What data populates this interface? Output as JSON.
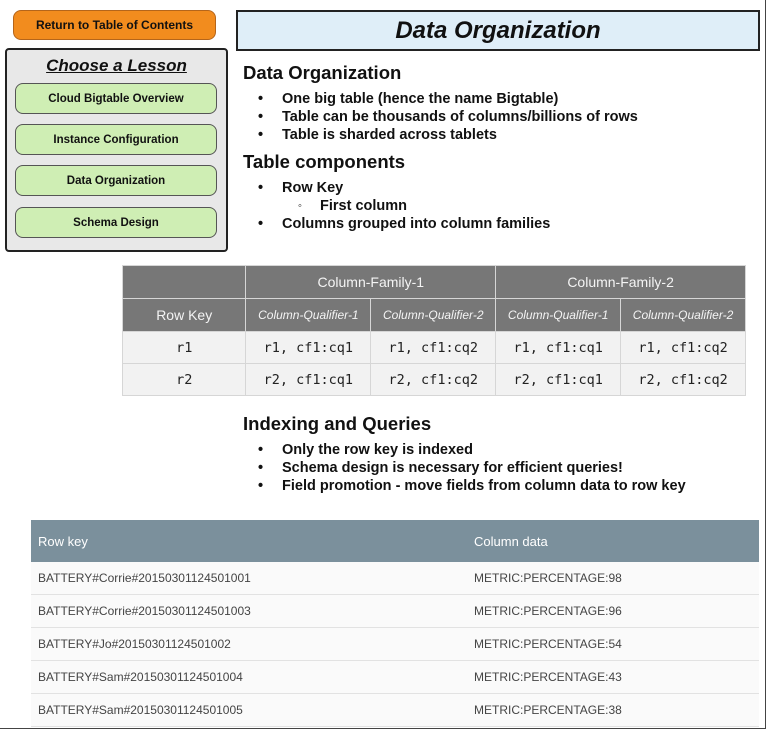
{
  "nav": {
    "return_label": "Return to Table of Contents",
    "lesson_title": "Choose a Lesson",
    "lessons": [
      {
        "label": "Cloud Bigtable Overview"
      },
      {
        "label": "Instance Configuration"
      },
      {
        "label": "Data Organization"
      },
      {
        "label": "Schema Design"
      }
    ]
  },
  "page_title": "Data Organization",
  "sections": {
    "organization": {
      "heading": "Data Organization",
      "bullets": [
        "One big table (hence the name Bigtable)",
        "Table can be thousands of columns/billions of rows",
        "Table is sharded across tablets"
      ]
    },
    "components": {
      "heading": "Table components",
      "bullet1": "Row Key",
      "sub1": "First column",
      "bullet2": "Columns grouped into column families"
    },
    "indexing": {
      "heading": "Indexing and Queries",
      "bullets": [
        "Only the row key is indexed",
        "Schema design is necessary for efficient queries!",
        "Field promotion - move fields from column data to row key"
      ]
    }
  },
  "bigtable": {
    "family1": "Column-Family-1",
    "family2": "Column-Family-2",
    "row_key_header": "Row Key",
    "qualifiers": [
      "Column-Qualifier-1",
      "Column-Qualifier-2",
      "Column-Qualifier-1",
      "Column-Qualifier-2"
    ],
    "rows": [
      {
        "key": "r1",
        "cells": [
          "r1, cf1:cq1",
          "r1, cf1:cq2",
          "r1, cf1:cq1",
          "r1, cf1:cq2"
        ]
      },
      {
        "key": "r2",
        "cells": [
          "r2, cf1:cq1",
          "r2, cf1:cq2",
          "r2, cf1:cq1",
          "r2, cf1:cq2"
        ]
      }
    ]
  },
  "rowkey_table": {
    "headers": [
      "Row key",
      "Column data"
    ],
    "rows": [
      [
        "BATTERY#Corrie#20150301124501001",
        "METRIC:PERCENTAGE:98"
      ],
      [
        "BATTERY#Corrie#20150301124501003",
        "METRIC:PERCENTAGE:96"
      ],
      [
        "BATTERY#Jo#20150301124501002",
        "METRIC:PERCENTAGE:54"
      ],
      [
        "BATTERY#Sam#20150301124501004",
        "METRIC:PERCENTAGE:43"
      ],
      [
        "BATTERY#Sam#20150301124501005",
        "METRIC:PERCENTAGE:38"
      ]
    ]
  },
  "colors": {
    "return_button": "#f28c1e",
    "lesson_button": "#cfeeb4",
    "title_bg": "#dfeef8",
    "table_header": "#777777",
    "rowkey_header": "#7b909c"
  }
}
